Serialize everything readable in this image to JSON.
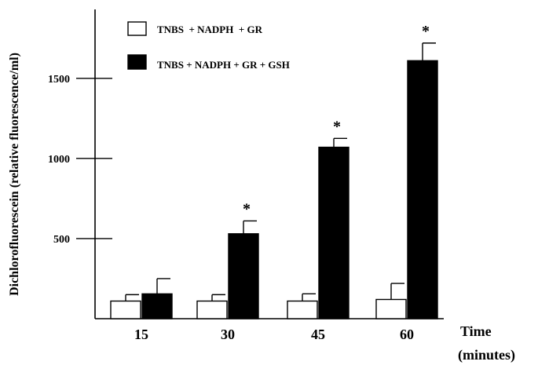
{
  "chart_data": {
    "type": "bar",
    "xlabel": "Time",
    "xlabel_unit": "(minutes)",
    "ylabel": "Dichlorofluorescein (relative fluorescence/ml)",
    "ylim": [
      0,
      1930
    ],
    "yticks": [
      500,
      1000,
      1500
    ],
    "categories": [
      "15",
      "30",
      "45",
      "60"
    ],
    "series": [
      {
        "name": "TNBS  + NADPH  + GR",
        "fill": "#ffffff",
        "values": [
          110,
          110,
          110,
          120
        ],
        "errors": [
          40,
          40,
          45,
          100
        ]
      },
      {
        "name": "TNBS + NADPH + GR + GSH",
        "fill": "#000000",
        "values": [
          155,
          530,
          1070,
          1610
        ],
        "errors": [
          95,
          80,
          55,
          110
        ]
      }
    ],
    "significance": [
      "",
      "*",
      "*",
      "*"
    ],
    "legend_position": "top-left",
    "grid": false
  }
}
